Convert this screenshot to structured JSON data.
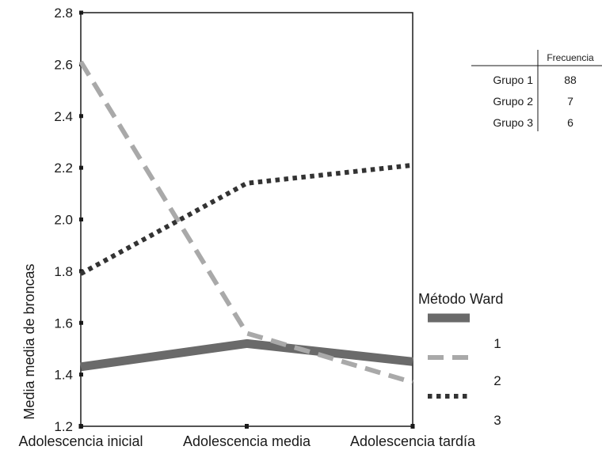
{
  "chart_data": {
    "type": "line",
    "categories": [
      "Adolescencia inicial",
      "Adolescencia media",
      "Adolescencia tardía"
    ],
    "ylabel": "Media media de broncas",
    "xlabel": "",
    "ylim": [
      1.2,
      2.8
    ],
    "yticks": [
      "1.2",
      "1.4",
      "1.6",
      "1.8",
      "2.0",
      "2.2",
      "2.4",
      "2.6",
      "2.8"
    ],
    "grid": false,
    "legend_title": "Método Ward",
    "legend_position": "right",
    "series": [
      {
        "name": "1",
        "values": [
          1.43,
          1.52,
          1.45
        ],
        "color": "#6a6a6a",
        "style": "solid-thick"
      },
      {
        "name": "2",
        "values": [
          2.61,
          1.56,
          1.37
        ],
        "color": "#a9a9a9",
        "style": "dashed"
      },
      {
        "name": "3",
        "values": [
          1.79,
          2.14,
          2.21
        ],
        "color": "#333333",
        "style": "dotted"
      }
    ]
  },
  "frequency_table": {
    "header": "Frecuencia",
    "rows": [
      {
        "label": "Grupo 1",
        "value": "88"
      },
      {
        "label": "Grupo 2",
        "value": "7"
      },
      {
        "label": "Grupo 3",
        "value": "6"
      }
    ]
  }
}
